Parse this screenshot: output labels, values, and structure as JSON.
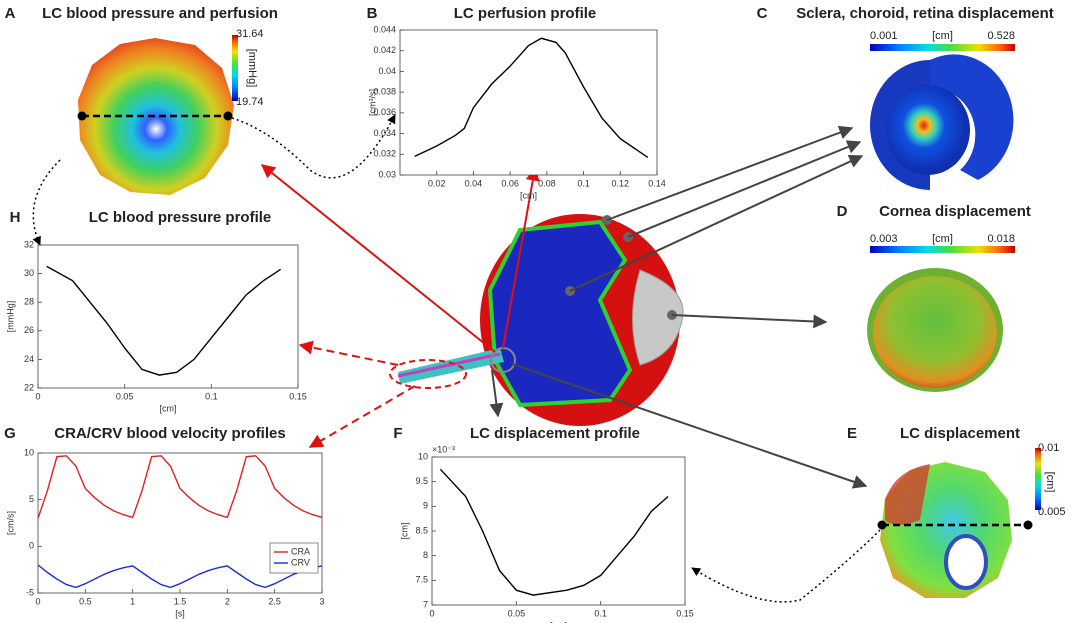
{
  "chart_data": [
    {
      "type": "line",
      "letter": "B",
      "title": "LC perfusion profile",
      "x_label": "[cm]",
      "y_label": "[cm³/s]",
      "x": [
        0.008,
        0.02,
        0.03,
        0.035,
        0.04,
        0.05,
        0.06,
        0.07,
        0.077,
        0.085,
        0.09,
        0.1,
        0.11,
        0.12,
        0.135
      ],
      "values": [
        0.0318,
        0.0328,
        0.0338,
        0.0345,
        0.0365,
        0.0388,
        0.0405,
        0.0425,
        0.0432,
        0.0428,
        0.0418,
        0.0385,
        0.0355,
        0.0335,
        0.0317
      ],
      "color": "#000000",
      "xlim": [
        0,
        0.14
      ],
      "xticks": [
        0.02,
        0.04,
        0.06,
        0.08,
        0.1,
        0.12,
        0.14
      ],
      "ylim": [
        0.03,
        0.044
      ],
      "yticks": [
        0.03,
        0.032,
        0.034,
        0.036,
        0.038,
        0.04,
        0.042,
        0.044
      ]
    },
    {
      "type": "line",
      "letter": "H",
      "title": "LC blood pressure profile",
      "x_label": "[cm]",
      "y_label": "[mmHg]",
      "x": [
        0.005,
        0.02,
        0.03,
        0.04,
        0.05,
        0.06,
        0.07,
        0.08,
        0.09,
        0.1,
        0.11,
        0.12,
        0.13,
        0.14
      ],
      "values": [
        30.5,
        29.5,
        28,
        26.5,
        24.8,
        23.3,
        22.9,
        23.1,
        24,
        25.5,
        27,
        28.5,
        29.5,
        30.3
      ],
      "color": "#000000",
      "xlim": [
        0,
        0.15
      ],
      "xticks": [
        0,
        0.05,
        0.1,
        0.15
      ],
      "ylim": [
        22,
        32
      ],
      "yticks": [
        22,
        24,
        26,
        28,
        30,
        32
      ]
    },
    {
      "type": "line",
      "letter": "G",
      "title": "CRA/CRV blood velocity profiles",
      "x_label": "[s]",
      "y_label": "[cm/s]",
      "x": [
        0,
        0.1,
        0.2,
        0.3,
        0.4,
        0.5,
        0.6,
        0.7,
        0.8,
        0.9,
        1,
        1.1,
        1.2,
        1.3,
        1.4,
        1.5,
        1.6,
        1.7,
        1.8,
        1.9,
        2,
        2.1,
        2.2,
        2.3,
        2.4,
        2.5,
        2.6,
        2.7,
        2.8,
        2.9,
        3
      ],
      "series": [
        {
          "name": "CRA",
          "color": "#e02020",
          "values": [
            3.0,
            6.0,
            9.6,
            9.7,
            8.6,
            6.2,
            5.2,
            4.4,
            3.8,
            3.4,
            3.1,
            6.0,
            9.6,
            9.7,
            8.6,
            6.2,
            5.2,
            4.4,
            3.8,
            3.4,
            3.1,
            6.0,
            9.6,
            9.7,
            8.6,
            6.2,
            5.2,
            4.4,
            3.8,
            3.4,
            3.1
          ]
        },
        {
          "name": "CRV",
          "color": "#1a2ee0",
          "values": [
            -2.0,
            -2.8,
            -3.5,
            -4.1,
            -4.4,
            -4.0,
            -3.5,
            -3.0,
            -2.6,
            -2.3,
            -2.1,
            -2.8,
            -3.5,
            -4.1,
            -4.4,
            -4.0,
            -3.5,
            -3.0,
            -2.6,
            -2.3,
            -2.1,
            -2.8,
            -3.5,
            -4.1,
            -4.4,
            -4.0,
            -3.5,
            -3.0,
            -2.6,
            -2.3,
            -2.1
          ]
        }
      ],
      "legend": "right",
      "xlim": [
        0,
        3
      ],
      "xticks": [
        0,
        0.5,
        1,
        1.5,
        2,
        2.5,
        3
      ],
      "ylim": [
        -5,
        10
      ],
      "yticks": [
        -5,
        0,
        5,
        10
      ]
    },
    {
      "type": "line",
      "letter": "F",
      "title": "LC displacement profile",
      "x_label": "[cm]",
      "y_label": "[cm]",
      "y_offset_label": "×10⁻³",
      "x": [
        0.005,
        0.02,
        0.03,
        0.04,
        0.05,
        0.06,
        0.08,
        0.09,
        0.1,
        0.11,
        0.12,
        0.13,
        0.14
      ],
      "values": [
        9.75,
        9.2,
        8.5,
        7.7,
        7.3,
        7.2,
        7.3,
        7.4,
        7.6,
        8.0,
        8.4,
        8.9,
        9.2
      ],
      "color": "#000000",
      "xlim": [
        0,
        0.15
      ],
      "xticks": [
        0,
        0.05,
        0.1,
        0.15
      ],
      "ylim": [
        7,
        10
      ],
      "yticks": [
        7,
        7.5,
        8,
        8.5,
        9,
        9.5,
        10
      ]
    }
  ],
  "panels": [
    {
      "letter": "A",
      "title": "LC blood pressure and perfusion",
      "colorbar": {
        "max": "31.64",
        "min": "19.74",
        "unit": "[mmHg]"
      }
    },
    {
      "letter": "C",
      "title": "Sclera, choroid, retina displacement",
      "colorbar": {
        "min": "0.001",
        "unit": "[cm]",
        "max": "0.528"
      }
    },
    {
      "letter": "D",
      "title": "Cornea displacement",
      "colorbar": {
        "min": "0.003",
        "unit": "[cm]",
        "max": "0.018"
      }
    },
    {
      "letter": "E",
      "title": "LC displacement",
      "colorbar": {
        "max": "0.01",
        "min": "0.005",
        "unit": "[cm]"
      }
    }
  ]
}
